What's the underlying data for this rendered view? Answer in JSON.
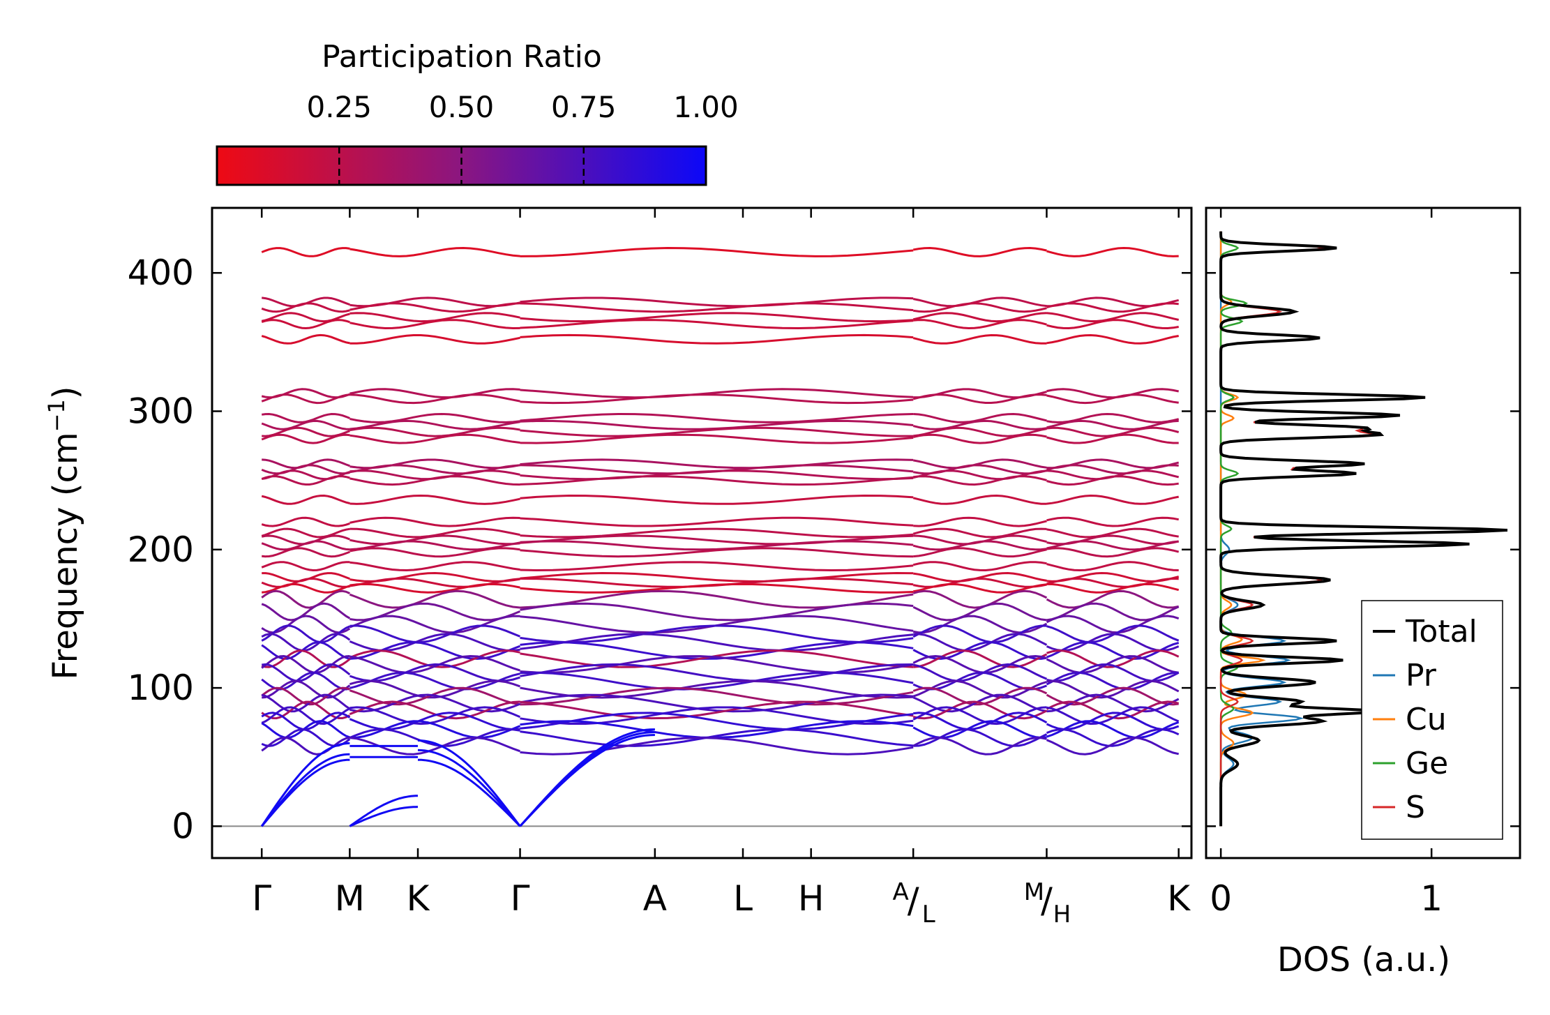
{
  "colors": {
    "cmap_low": "#ee0a14",
    "cmap_mid": "#8b1680",
    "cmap_high": "#0c08f8",
    "total": "#000000",
    "pr": "#1f77b4",
    "cu": "#ff7f0e",
    "ge": "#2ca02c",
    "s": "#d62728",
    "zero_line": "#888888"
  },
  "colorbar": {
    "title": "Participation Ratio",
    "ticks": [
      {
        "label": "0.25",
        "value": 0.25
      },
      {
        "label": "0.50",
        "value": 0.5
      },
      {
        "label": "0.75",
        "value": 0.75
      },
      {
        "label": "1.00",
        "value": 1.0
      }
    ],
    "range": [
      0.0,
      1.0
    ]
  },
  "chart_data": [
    {
      "type": "line",
      "name": "phonon-dispersion",
      "ylabel": "Frequency (cm",
      "ylabel_sup": "−1",
      "ylabel_close": ")",
      "ylim": [
        -23,
        447
      ],
      "yticks": [
        {
          "label": "0",
          "value": 0
        },
        {
          "label": "100",
          "value": 100
        },
        {
          "label": "200",
          "value": 200
        },
        {
          "label": "300",
          "value": 300
        },
        {
          "label": "400",
          "value": 400
        }
      ],
      "xlim": [
        -0.35,
        6.55
      ],
      "kpoints": [
        {
          "label": "Γ",
          "pos": 0.0
        },
        {
          "label": "M",
          "pos": 0.62
        },
        {
          "label": "K",
          "pos": 1.1
        },
        {
          "label": "Γ",
          "pos": 1.82
        },
        {
          "label": "A",
          "pos": 2.77
        },
        {
          "label": "L",
          "pos": 3.39
        },
        {
          "label": "H",
          "pos": 3.87
        },
        {
          "label_top": "A",
          "label_bottom": "L",
          "pos": 4.59
        },
        {
          "label_top": "M",
          "label_bottom": "H",
          "pos": 5.53
        },
        {
          "label": "K",
          "pos": 6.46
        }
      ],
      "segments": [
        {
          "from": 0.0,
          "to": 0.62
        },
        {
          "from": 0.62,
          "to": 1.82
        },
        {
          "from": 1.82,
          "to": 4.59
        },
        {
          "from": 4.59,
          "to": 5.53
        },
        {
          "from": 5.53,
          "to": 6.46
        }
      ],
      "flat_bands": [
        {
          "f": 415,
          "pr": 0.08
        },
        {
          "f": 379,
          "pr": 0.25
        },
        {
          "f": 375,
          "pr": 0.22
        },
        {
          "f": 368,
          "pr": 0.2
        },
        {
          "f": 363,
          "pr": 0.18
        },
        {
          "f": 352,
          "pr": 0.12
        },
        {
          "f": 313,
          "pr": 0.3
        },
        {
          "f": 309,
          "pr": 0.28
        },
        {
          "f": 295,
          "pr": 0.3
        },
        {
          "f": 290,
          "pr": 0.32
        },
        {
          "f": 285,
          "pr": 0.28
        },
        {
          "f": 280,
          "pr": 0.26
        },
        {
          "f": 262,
          "pr": 0.35
        },
        {
          "f": 258,
          "pr": 0.33
        },
        {
          "f": 254,
          "pr": 0.3
        },
        {
          "f": 250,
          "pr": 0.28
        },
        {
          "f": 236,
          "pr": 0.2
        },
        {
          "f": 220,
          "pr": 0.22
        },
        {
          "f": 212,
          "pr": 0.25
        },
        {
          "f": 207,
          "pr": 0.28
        },
        {
          "f": 203,
          "pr": 0.3
        },
        {
          "f": 198,
          "pr": 0.26
        },
        {
          "f": 188,
          "pr": 0.22
        },
        {
          "f": 180,
          "pr": 0.15
        },
        {
          "f": 176,
          "pr": 0.18
        },
        {
          "f": 172,
          "pr": 0.12
        },
        {
          "f": 164,
          "pr": 0.5
        },
        {
          "f": 155,
          "pr": 0.6
        },
        {
          "f": 146,
          "pr": 0.65
        },
        {
          "f": 139,
          "pr": 0.8
        },
        {
          "f": 133,
          "pr": 0.75
        },
        {
          "f": 127,
          "pr": 0.82
        },
        {
          "f": 121,
          "pr": 0.3
        },
        {
          "f": 117,
          "pr": 0.7
        },
        {
          "f": 111,
          "pr": 0.78
        },
        {
          "f": 105,
          "pr": 0.8
        },
        {
          "f": 99,
          "pr": 0.7
        },
        {
          "f": 94,
          "pr": 0.4
        },
        {
          "f": 89,
          "pr": 0.75
        },
        {
          "f": 84,
          "pr": 0.35
        },
        {
          "f": 80,
          "pr": 0.8
        },
        {
          "f": 76,
          "pr": 0.85
        },
        {
          "f": 70,
          "pr": 0.9
        },
        {
          "f": 64,
          "pr": 0.82
        },
        {
          "f": 58,
          "pr": 0.75
        }
      ],
      "acoustic_pr": 0.98
    },
    {
      "type": "line",
      "name": "density-of-states",
      "xlabel": "DOS (a.u.)",
      "xlim": [
        -0.07,
        1.42
      ],
      "ylim": [
        -23,
        447
      ],
      "xticks": [
        {
          "label": "0",
          "value": 0
        },
        {
          "label": "1",
          "value": 1
        }
      ],
      "legend_position": "lower-right",
      "series": [
        {
          "name": "Total",
          "color_key": "total",
          "peaks": [
            [
              418,
              0.55,
              3
            ],
            [
              372,
              0.35,
              4
            ],
            [
              353,
              0.47,
              3
            ],
            [
              310,
              0.97,
              3
            ],
            [
              297,
              0.85,
              3
            ],
            [
              288,
              0.65,
              3
            ],
            [
              283,
              0.72,
              3
            ],
            [
              262,
              0.68,
              3
            ],
            [
              255,
              0.64,
              3
            ],
            [
              214,
              1.36,
              3
            ],
            [
              204,
              1.18,
              3
            ],
            [
              178,
              0.52,
              4
            ],
            [
              160,
              0.2,
              4
            ],
            [
              134,
              0.55,
              3
            ],
            [
              120,
              0.58,
              3
            ],
            [
              104,
              0.45,
              4
            ],
            [
              90,
              0.38,
              4
            ],
            [
              83,
              0.7,
              3
            ],
            [
              76,
              0.48,
              4
            ],
            [
              62,
              0.18,
              5
            ],
            [
              45,
              0.08,
              6
            ]
          ]
        },
        {
          "name": "Pr",
          "color_key": "pr",
          "peaks": [
            [
              134,
              0.3,
              4
            ],
            [
              120,
              0.32,
              4
            ],
            [
              104,
              0.3,
              4
            ],
            [
              90,
              0.28,
              4
            ],
            [
              78,
              0.38,
              4
            ],
            [
              64,
              0.15,
              5
            ],
            [
              45,
              0.06,
              6
            ],
            [
              160,
              0.08,
              5
            ],
            [
              200,
              0.04,
              5
            ]
          ]
        },
        {
          "name": "Cu",
          "color_key": "cu",
          "peaks": [
            [
              379,
              0.05,
              3
            ],
            [
              310,
              0.08,
              3
            ],
            [
              295,
              0.06,
              3
            ],
            [
              135,
              0.1,
              4
            ],
            [
              120,
              0.2,
              3
            ],
            [
              95,
              0.12,
              4
            ],
            [
              82,
              0.15,
              4
            ],
            [
              60,
              0.06,
              5
            ],
            [
              160,
              0.05,
              4
            ]
          ]
        },
        {
          "name": "Ge",
          "color_key": "ge",
          "peaks": [
            [
              418,
              0.08,
              3
            ],
            [
              378,
              0.12,
              3
            ],
            [
              365,
              0.1,
              3
            ],
            [
              310,
              0.06,
              3
            ],
            [
              255,
              0.08,
              3
            ],
            [
              215,
              0.05,
              3
            ],
            [
              140,
              0.05,
              4
            ],
            [
              115,
              0.08,
              4
            ],
            [
              85,
              0.06,
              4
            ]
          ]
        },
        {
          "name": "S",
          "color_key": "s",
          "peaks": [
            [
              418,
              0.5,
              3
            ],
            [
              372,
              0.28,
              4
            ],
            [
              353,
              0.45,
              3
            ],
            [
              310,
              0.95,
              3
            ],
            [
              297,
              0.82,
              3
            ],
            [
              288,
              0.62,
              3
            ],
            [
              283,
              0.68,
              3
            ],
            [
              262,
              0.65,
              3
            ],
            [
              255,
              0.62,
              3
            ],
            [
              214,
              1.34,
              3
            ],
            [
              204,
              1.15,
              3
            ],
            [
              178,
              0.48,
              4
            ],
            [
              160,
              0.15,
              4
            ],
            [
              134,
              0.15,
              4
            ],
            [
              120,
              0.1,
              4
            ],
            [
              90,
              0.08,
              4
            ]
          ]
        }
      ]
    }
  ]
}
